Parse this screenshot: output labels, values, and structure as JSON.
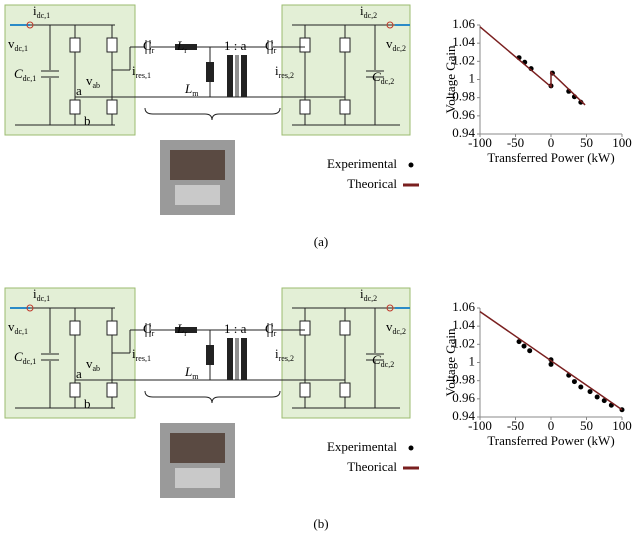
{
  "circuit": {
    "labels": [
      {
        "main": "i",
        "sub": "dc,1"
      },
      {
        "main": "v",
        "sub": "dc,1"
      },
      {
        "main": "C",
        "sub": "dc,1"
      },
      {
        "main": "a"
      },
      {
        "main": "v",
        "sub": "ab"
      },
      {
        "main": "b"
      },
      {
        "main": "C",
        "sub": "r"
      },
      {
        "main": "L",
        "sub": "r"
      },
      {
        "main": "i",
        "sub": "res,1"
      },
      {
        "main": "L",
        "sub": "m"
      },
      {
        "main": "1 : a"
      },
      {
        "main": "C",
        "sub": "r"
      },
      {
        "main": "i",
        "sub": "res,2"
      },
      {
        "main": "i",
        "sub": "dc,2"
      },
      {
        "main": "v",
        "sub": "dc,2"
      },
      {
        "main": "C",
        "sub": "dc,2"
      }
    ]
  },
  "captions": [
    "(a)",
    "(b)"
  ],
  "chart_data": [
    {
      "type": "scatter",
      "xlabel": "Transferred Power (kW)",
      "ylabel": "Voltage Gain",
      "xlim": [
        -100,
        100
      ],
      "xticks": [
        -100,
        -50,
        0,
        50,
        100
      ],
      "ylim": [
        0.94,
        1.06
      ],
      "yticks": [
        0.94,
        0.96,
        0.98,
        1,
        1.02,
        1.04,
        1.06
      ],
      "grid": false,
      "series": [
        {
          "name": "Experimental",
          "style": "markers",
          "color": "#000000",
          "x": [
            -45,
            -37,
            -28,
            0,
            2,
            25,
            33,
            42
          ],
          "values": [
            1.024,
            1.019,
            1.012,
            0.993,
            1.007,
            0.987,
            0.981,
            0.975
          ]
        },
        {
          "name": "Theorical",
          "style": "line",
          "color": "#7a1f1f",
          "x": [
            -100,
            0,
            0,
            48
          ],
          "values": [
            1.058,
            0.992,
            1.008,
            0.972
          ]
        }
      ]
    },
    {
      "type": "scatter",
      "xlabel": "Transferred Power (kW)",
      "ylabel": "Voltage Gain",
      "xlim": [
        -100,
        100
      ],
      "xticks": [
        -100,
        -50,
        0,
        50,
        100
      ],
      "ylim": [
        0.94,
        1.06
      ],
      "yticks": [
        0.94,
        0.96,
        0.98,
        1,
        1.02,
        1.04,
        1.06
      ],
      "grid": false,
      "series": [
        {
          "name": "Experimental",
          "style": "markers",
          "color": "#000000",
          "x": [
            -45,
            -38,
            -30,
            0,
            0,
            25,
            33,
            42,
            55,
            65,
            75,
            85,
            100
          ],
          "values": [
            1.023,
            1.018,
            1.013,
            1.003,
            0.998,
            0.986,
            0.979,
            0.973,
            0.968,
            0.962,
            0.958,
            0.953,
            0.948
          ]
        },
        {
          "name": "Theorical",
          "style": "line",
          "color": "#7a1f1f",
          "x": [
            -100,
            100
          ],
          "values": [
            1.056,
            0.948
          ]
        }
      ]
    }
  ]
}
